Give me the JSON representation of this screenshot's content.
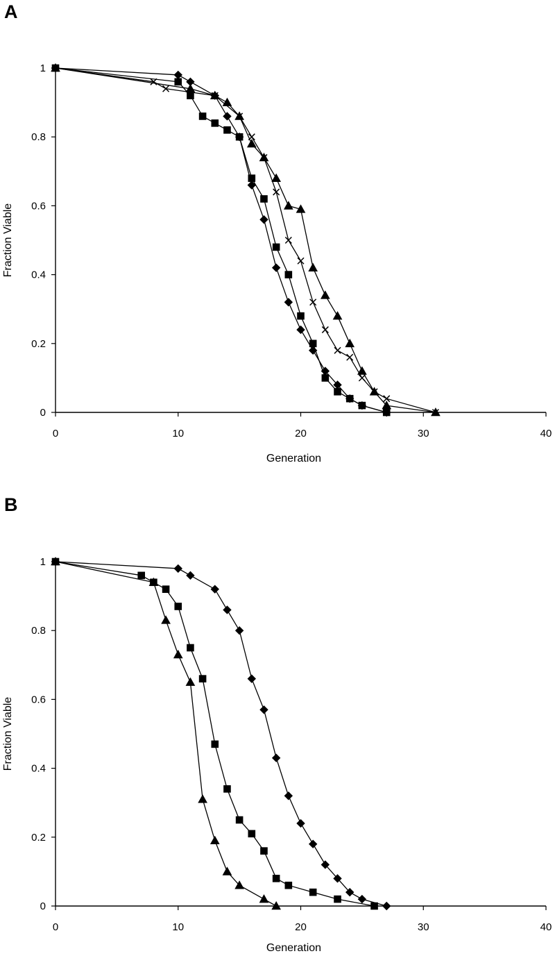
{
  "panels": [
    {
      "letter": "A"
    },
    {
      "letter": "B"
    }
  ],
  "chart_data": [
    {
      "type": "line",
      "panel": "A",
      "title": "",
      "xlabel": "Generation",
      "ylabel": "Fraction Viable",
      "xlim": [
        0,
        40
      ],
      "ylim": [
        0,
        1
      ],
      "xticks": [
        0,
        10,
        20,
        30,
        40
      ],
      "yticks": [
        0,
        0.2,
        0.4,
        0.6,
        0.8,
        1
      ],
      "ytick_labels": [
        "0",
        "0.2",
        "0.4",
        "0.6",
        "0.8",
        "1"
      ],
      "grid": false,
      "series": [
        {
          "marker": "diamond",
          "x": [
            0,
            10,
            11,
            13,
            14,
            15,
            16,
            17,
            18,
            19,
            20,
            21,
            22,
            23,
            24,
            25,
            27
          ],
          "y": [
            1,
            0.98,
            0.96,
            0.92,
            0.86,
            0.8,
            0.66,
            0.56,
            0.42,
            0.32,
            0.24,
            0.18,
            0.12,
            0.08,
            0.04,
            0.02,
            0
          ]
        },
        {
          "marker": "square",
          "x": [
            0,
            10,
            11,
            12,
            13,
            14,
            15,
            16,
            17,
            18,
            19,
            20,
            21,
            22,
            23,
            24,
            25,
            27
          ],
          "y": [
            1,
            0.96,
            0.92,
            0.86,
            0.84,
            0.82,
            0.8,
            0.68,
            0.62,
            0.48,
            0.4,
            0.28,
            0.2,
            0.1,
            0.06,
            0.04,
            0.02,
            0
          ]
        },
        {
          "marker": "triangle",
          "x": [
            0,
            11,
            13,
            14,
            15,
            16,
            17,
            18,
            19,
            20,
            21,
            22,
            23,
            24,
            25,
            26,
            27,
            31
          ],
          "y": [
            1,
            0.94,
            0.92,
            0.9,
            0.86,
            0.78,
            0.74,
            0.68,
            0.6,
            0.59,
            0.42,
            0.34,
            0.28,
            0.2,
            0.12,
            0.06,
            0.02,
            0
          ]
        },
        {
          "marker": "x",
          "x": [
            0,
            8,
            9,
            13,
            15,
            16,
            17,
            18,
            19,
            20,
            21,
            22,
            23,
            24,
            25,
            26,
            27,
            31
          ],
          "y": [
            1,
            0.96,
            0.94,
            0.92,
            0.86,
            0.8,
            0.74,
            0.64,
            0.5,
            0.44,
            0.32,
            0.24,
            0.18,
            0.16,
            0.1,
            0.06,
            0.04,
            0
          ]
        }
      ]
    },
    {
      "type": "line",
      "panel": "B",
      "title": "",
      "xlabel": "Generation",
      "ylabel": "Fraction Viable",
      "xlim": [
        0,
        40
      ],
      "ylim": [
        0,
        1
      ],
      "xticks": [
        0,
        10,
        20,
        30,
        40
      ],
      "yticks": [
        0,
        0.2,
        0.4,
        0.6,
        0.8,
        1
      ],
      "ytick_labels": [
        "0",
        "0.2",
        "0.4",
        "0.6",
        "0.8",
        "1"
      ],
      "grid": false,
      "series": [
        {
          "marker": "diamond",
          "x": [
            0,
            10,
            11,
            13,
            14,
            15,
            16,
            17,
            18,
            19,
            20,
            21,
            22,
            23,
            24,
            25,
            27
          ],
          "y": [
            1,
            0.98,
            0.96,
            0.92,
            0.86,
            0.8,
            0.66,
            0.57,
            0.43,
            0.32,
            0.24,
            0.18,
            0.12,
            0.08,
            0.04,
            0.02,
            0
          ]
        },
        {
          "marker": "square",
          "x": [
            0,
            7,
            8,
            9,
            10,
            11,
            12,
            13,
            14,
            15,
            16,
            17,
            18,
            19,
            21,
            23,
            26
          ],
          "y": [
            1,
            0.96,
            0.94,
            0.92,
            0.87,
            0.75,
            0.66,
            0.47,
            0.34,
            0.25,
            0.21,
            0.16,
            0.08,
            0.06,
            0.04,
            0.02,
            0
          ]
        },
        {
          "marker": "triangle",
          "x": [
            0,
            8,
            9,
            10,
            11,
            12,
            13,
            14,
            15,
            17,
            18
          ],
          "y": [
            1,
            0.94,
            0.83,
            0.73,
            0.65,
            0.31,
            0.19,
            0.1,
            0.06,
            0.02,
            0
          ]
        }
      ]
    }
  ]
}
